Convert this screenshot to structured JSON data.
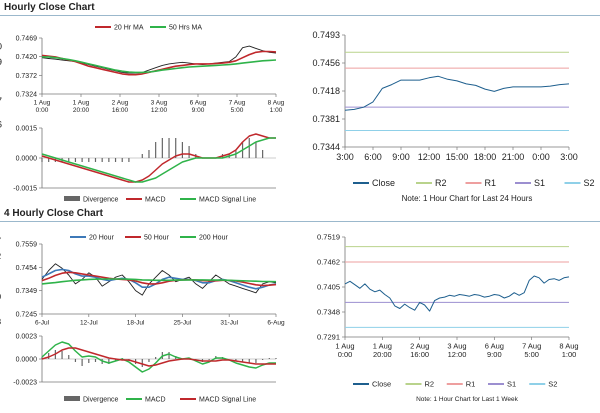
{
  "titles": {
    "hourly": "Hourly Close Chart",
    "four_hourly": "4 Hourly Close Chart"
  },
  "colors": {
    "price": "#222222",
    "ma_red": "#c0282c",
    "ma_green": "#2fb34a",
    "ma_blue": "#3d79b8",
    "close": "#1e5f8e",
    "r2": "#b9d38c",
    "r1": "#ee9f9f",
    "s1": "#9c8fd0",
    "s2": "#8fd0e8",
    "divergence": "#666666"
  },
  "chart_data": [
    {
      "id": "hourly-price",
      "type": "line",
      "x_ticks": [
        "1 Aug\n0:00",
        "1 Aug\n20:00",
        "2 Aug\n16:00",
        "3 Aug\n12:00",
        "6 Aug\n9:00",
        "7 Aug\n5:00",
        "8 Aug\n1:00"
      ],
      "ylim": [
        0.7324,
        0.7469
      ],
      "y_ticks": [
        "0.7469",
        "0.7420",
        "0.7372",
        "0.7324"
      ],
      "legend": [
        "20 Hr MA",
        "50 Hrs MA"
      ],
      "series": [
        {
          "name": "Close",
          "color": "#222222",
          "values": [
            0.7418,
            0.7416,
            0.7414,
            0.7412,
            0.741,
            0.7408,
            0.7404,
            0.74,
            0.7396,
            0.7392,
            0.7388,
            0.7384,
            0.738,
            0.7378,
            0.7378,
            0.738,
            0.7386,
            0.7392,
            0.7398,
            0.7402,
            0.7404,
            0.7406,
            0.7404,
            0.7402,
            0.74,
            0.7402,
            0.7404,
            0.7406,
            0.7408,
            0.742,
            0.7444,
            0.7448,
            0.7442,
            0.7436,
            0.7432,
            0.743
          ]
        },
        {
          "name": "20 Hr MA",
          "color": "#c0282c",
          "values": [
            0.7424,
            0.7422,
            0.742,
            0.7416,
            0.7412,
            0.7408,
            0.7402,
            0.7396,
            0.7392,
            0.7388,
            0.7384,
            0.738,
            0.7376,
            0.7374,
            0.7374,
            0.7376,
            0.738,
            0.7384,
            0.7388,
            0.7392,
            0.7396,
            0.7398,
            0.74,
            0.7402,
            0.7402,
            0.7402,
            0.7403,
            0.7404,
            0.7406,
            0.741,
            0.7418,
            0.7426,
            0.7432,
            0.7434,
            0.7434,
            0.7433
          ]
        },
        {
          "name": "50 Hrs MA",
          "color": "#2fb34a",
          "values": [
            0.742,
            0.742,
            0.7418,
            0.7416,
            0.7413,
            0.741,
            0.7406,
            0.7402,
            0.7398,
            0.7394,
            0.739,
            0.7386,
            0.7383,
            0.7381,
            0.738,
            0.738,
            0.7381,
            0.7383,
            0.7386,
            0.7388,
            0.739,
            0.7392,
            0.7394,
            0.7395,
            0.7396,
            0.7397,
            0.7398,
            0.7399,
            0.74,
            0.7402,
            0.7404,
            0.7406,
            0.7408,
            0.741,
            0.7411,
            0.7412
          ]
        }
      ]
    },
    {
      "id": "hourly-macd",
      "type": "line",
      "ylim": [
        -0.0015,
        0.0015
      ],
      "y_ticks": [
        "0.0015",
        "0.0000",
        "-0.0015"
      ],
      "legend": [
        "Divergence",
        "MACD",
        "MACD Signal Line"
      ],
      "series": [
        {
          "name": "MACD",
          "color": "#c0282c",
          "values": [
            0.0001,
            0.0,
            -0.0001,
            -0.0002,
            -0.0003,
            -0.0004,
            -0.0005,
            -0.0006,
            -0.0007,
            -0.0008,
            -0.0009,
            -0.001,
            -0.0011,
            -0.0012,
            -0.0012,
            -0.0011,
            -0.0009,
            -0.0006,
            -0.0003,
            -0.0001,
            0.0001,
            0.0002,
            0.0002,
            0.0001,
            0.0,
            0.0,
            0.0,
            0.0001,
            0.0002,
            0.0004,
            0.0008,
            0.0011,
            0.0012,
            0.0011,
            0.001,
            0.001
          ]
        },
        {
          "name": "MACD Signal Line",
          "color": "#2fb34a",
          "values": [
            0.0002,
            0.0001,
            0.0,
            -0.0001,
            -0.0002,
            -0.0003,
            -0.0004,
            -0.0005,
            -0.0006,
            -0.0007,
            -0.0008,
            -0.0009,
            -0.001,
            -0.0011,
            -0.0012,
            -0.0012,
            -0.0011,
            -0.001,
            -0.0008,
            -0.0006,
            -0.0004,
            -0.0002,
            -0.0001,
            0.0,
            0.0,
            0.0,
            0.0,
            0.0,
            0.0001,
            0.0002,
            0.0004,
            0.0006,
            0.0008,
            0.0009,
            0.001,
            0.001
          ]
        }
      ]
    },
    {
      "id": "hourly-right",
      "type": "line",
      "x_ticks": [
        "3:00",
        "6:00",
        "9:00",
        "12:00",
        "15:00",
        "18:00",
        "21:00",
        "0:00",
        "3:00"
      ],
      "ylim": [
        0.7344,
        0.7493
      ],
      "y_ticks": [
        "0.7493",
        "0.7456",
        "0.7418",
        "0.7381",
        "0.7344"
      ],
      "levels": [
        {
          "name": "R2",
          "value": 0.747,
          "label": "0.7470",
          "color": "#b9d38c"
        },
        {
          "name": "R1",
          "value": 0.7449,
          "label": "0.7449",
          "color": "#ee9f9f"
        },
        {
          "name": "S1",
          "value": 0.7397,
          "label": "0.7397",
          "color": "#9c8fd0"
        },
        {
          "name": "S2",
          "value": 0.7366,
          "label": "0.7366",
          "color": "#8fd0e8"
        }
      ],
      "series": [
        {
          "name": "Close",
          "color": "#1e5f8e",
          "values": [
            0.7393,
            0.7394,
            0.7397,
            0.7404,
            0.7422,
            0.7427,
            0.7433,
            0.7433,
            0.7433,
            0.7436,
            0.7438,
            0.7434,
            0.7432,
            0.7428,
            0.7426,
            0.7421,
            0.7418,
            0.7422,
            0.7424,
            0.7424,
            0.7424,
            0.7424,
            0.7425,
            0.7427,
            0.7428
          ]
        }
      ],
      "legend": [
        "Close",
        "R2",
        "R1",
        "S1",
        "S2"
      ],
      "note": "Note: 1 Hour Chart for Last 24 Hours"
    },
    {
      "id": "four-hourly-price",
      "type": "line",
      "x_ticks": [
        "6-Jul",
        "12-Jul",
        "18-Jul",
        "25-Jul",
        "31-Jul",
        "6-Aug"
      ],
      "ylim": [
        0.7245,
        0.7559
      ],
      "y_ticks": [
        "0.7559",
        "0.7454",
        "0.7349",
        "0.7245"
      ],
      "legend": [
        "20 Hour",
        "50 Hour",
        "200 Hour"
      ],
      "series": [
        {
          "name": "Close",
          "color": "#222222",
          "values": [
            0.74,
            0.744,
            0.747,
            0.745,
            0.742,
            0.738,
            0.74,
            0.743,
            0.741,
            0.737,
            0.739,
            0.741,
            0.742,
            0.739,
            0.735,
            0.733,
            0.738,
            0.741,
            0.744,
            0.742,
            0.739,
            0.74,
            0.741,
            0.738,
            0.736,
            0.739,
            0.742,
            0.74,
            0.738,
            0.737,
            0.736,
            0.735,
            0.734,
            0.738,
            0.739,
            0.7385
          ]
        },
        {
          "name": "20 Hour",
          "color": "#3d79b8",
          "values": [
            0.741,
            0.7425,
            0.744,
            0.7445,
            0.744,
            0.7425,
            0.7415,
            0.7415,
            0.741,
            0.74,
            0.7395,
            0.74,
            0.7405,
            0.74,
            0.7385,
            0.7365,
            0.7365,
            0.738,
            0.74,
            0.741,
            0.7405,
            0.74,
            0.74,
            0.7395,
            0.7385,
            0.7385,
            0.7395,
            0.74,
            0.7395,
            0.7385,
            0.7375,
            0.7365,
            0.7358,
            0.7365,
            0.7375,
            0.738
          ]
        },
        {
          "name": "50 Hour",
          "color": "#c0282c",
          "values": [
            0.7395,
            0.7405,
            0.7418,
            0.7428,
            0.7432,
            0.743,
            0.7425,
            0.742,
            0.7415,
            0.741,
            0.7405,
            0.7402,
            0.74,
            0.7398,
            0.7393,
            0.7385,
            0.738,
            0.738,
            0.7385,
            0.7392,
            0.7396,
            0.7398,
            0.7399,
            0.7398,
            0.7395,
            0.7393,
            0.7394,
            0.7396,
            0.7396,
            0.7393,
            0.7388,
            0.7382,
            0.7376,
            0.7373,
            0.7374,
            0.7377
          ]
        },
        {
          "name": "200 Hour",
          "color": "#2fb34a",
          "values": [
            0.738,
            0.7383,
            0.7386,
            0.739,
            0.7393,
            0.7396,
            0.7398,
            0.74,
            0.7401,
            0.7402,
            0.7402,
            0.7402,
            0.7402,
            0.7401,
            0.74,
            0.7398,
            0.7397,
            0.7396,
            0.7396,
            0.7396,
            0.7397,
            0.7397,
            0.7398,
            0.7398,
            0.7398,
            0.7397,
            0.7397,
            0.7397,
            0.7396,
            0.7395,
            0.7394,
            0.7393,
            0.7392,
            0.7391,
            0.7391,
            0.739
          ]
        }
      ]
    },
    {
      "id": "four-hourly-macd",
      "type": "line",
      "ylim": [
        -0.0023,
        0.0023
      ],
      "y_ticks": [
        "0.0023",
        "0.0000",
        "-0.0023"
      ],
      "legend": [
        "Divergence",
        "MACD",
        "MACD Signal Line"
      ],
      "series": [
        {
          "name": "MACD",
          "color": "#2fb34a",
          "values": [
            0.0002,
            0.0008,
            0.0014,
            0.0017,
            0.0015,
            0.0008,
            0.0002,
            0.0003,
            0.0002,
            -0.0002,
            -0.0004,
            -0.0002,
            0.0,
            -0.0003,
            -0.0008,
            -0.0013,
            -0.001,
            -0.0004,
            0.0003,
            0.0005,
            0.0002,
            0.0,
            0.0001,
            -0.0002,
            -0.0005,
            -0.0003,
            0.0001,
            0.0001,
            -0.0001,
            -0.0004,
            -0.0006,
            -0.0008,
            -0.0009,
            -0.0006,
            -0.0004,
            -0.0004
          ]
        },
        {
          "name": "MACD Signal Line",
          "color": "#c0282c",
          "values": [
            0.0,
            0.0002,
            0.0005,
            0.0009,
            0.0011,
            0.0011,
            0.0009,
            0.0007,
            0.0005,
            0.0003,
            0.0001,
            0.0,
            -0.0001,
            -0.0001,
            -0.0003,
            -0.0005,
            -0.0007,
            -0.0006,
            -0.0004,
            -0.0002,
            -0.0001,
            0.0,
            0.0,
            -0.0001,
            -0.0002,
            -0.0002,
            -0.0002,
            -0.0001,
            -0.0001,
            -0.0002,
            -0.0003,
            -0.0004,
            -0.0005,
            -0.0005,
            -0.0005,
            -0.0005
          ]
        }
      ]
    },
    {
      "id": "four-hourly-right",
      "type": "line",
      "x_ticks": [
        "1 Aug\n0:00",
        "1 Aug\n20:00",
        "2 Aug\n16:00",
        "3 Aug\n12:00",
        "6 Aug\n9:00",
        "7 Aug\n5:00",
        "8 Aug\n1:00"
      ],
      "ylim": [
        0.7291,
        0.7519
      ],
      "y_ticks": [
        "0.7519",
        "0.7462",
        "0.7405",
        "0.7348",
        "0.7291"
      ],
      "levels": [
        {
          "name": "R2",
          "value": 0.7497,
          "label": "0.7497",
          "color": "#b9d38c"
        },
        {
          "name": "R1",
          "value": 0.7462,
          "label": "0.7462",
          "color": "#ee9f9f"
        },
        {
          "name": "S1",
          "value": 0.737,
          "label": "0.7370",
          "color": "#9c8fd0"
        },
        {
          "name": "S2",
          "value": 0.7313,
          "label": "0.7313",
          "color": "#8fd0e8"
        }
      ],
      "series": [
        {
          "name": "Close",
          "color": "#1e5f8e",
          "values": [
            0.7412,
            0.7418,
            0.741,
            0.7402,
            0.7412,
            0.74,
            0.7394,
            0.7398,
            0.7388,
            0.738,
            0.7362,
            0.7356,
            0.7366,
            0.7358,
            0.7352,
            0.737,
            0.7364,
            0.735,
            0.7374,
            0.738,
            0.7382,
            0.7386,
            0.7384,
            0.7388,
            0.7386,
            0.7384,
            0.7388,
            0.7386,
            0.7382,
            0.7384,
            0.7388,
            0.7386,
            0.738,
            0.7384,
            0.7392,
            0.7386,
            0.7392,
            0.742,
            0.743,
            0.7426,
            0.7414,
            0.7422,
            0.7424,
            0.742,
            0.7426,
            0.7428
          ]
        }
      ],
      "legend": [
        "Close",
        "R2",
        "R1",
        "S1",
        "S2"
      ],
      "note": "Note: 1 Hour Chart for Last 1 Week"
    }
  ]
}
